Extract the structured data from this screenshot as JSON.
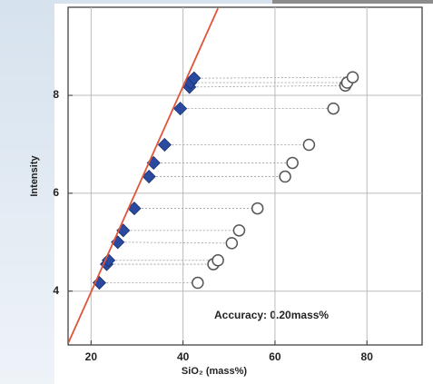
{
  "chart_data": {
    "type": "scatter",
    "x_label": "SiO₂ (mass%)",
    "y_label": "Intensity",
    "annotation": "Accuracy: 0.20mass%",
    "xlim": [
      15,
      92
    ],
    "ylim": [
      2.9,
      9.8
    ],
    "xticks": [
      20,
      40,
      60,
      80
    ],
    "yticks": [
      4,
      6,
      8
    ],
    "grid": true,
    "series": [
      {
        "color": "#2a4aa0",
        "marker": "diamond",
        "x": [
          21.8,
          23.4,
          23.8,
          25.8,
          27,
          29.4,
          32.6,
          33.6,
          36,
          39.4,
          41.4,
          41.6,
          42.4
        ],
        "values": [
          4.17,
          4.55,
          4.63,
          5.0,
          5.24,
          5.69,
          6.34,
          6.62,
          6.99,
          7.73,
          8.17,
          8.26,
          8.35
        ]
      },
      {
        "color": "#555555",
        "marker": "circle",
        "x": [
          43.2,
          46.6,
          47.6,
          50.6,
          52.2,
          56.2,
          62.2,
          63.8,
          67.4,
          72.7,
          75.3,
          75.7,
          76.9
        ],
        "values": [
          4.17,
          4.55,
          4.63,
          4.98,
          5.24,
          5.69,
          6.34,
          6.62,
          6.99,
          7.73,
          8.2,
          8.26,
          8.37
        ]
      },
      {
        "color": "#e0553a",
        "marker": "line",
        "x": [
          15,
          47.6
        ],
        "values": [
          2.93,
          9.78
        ]
      }
    ]
  }
}
